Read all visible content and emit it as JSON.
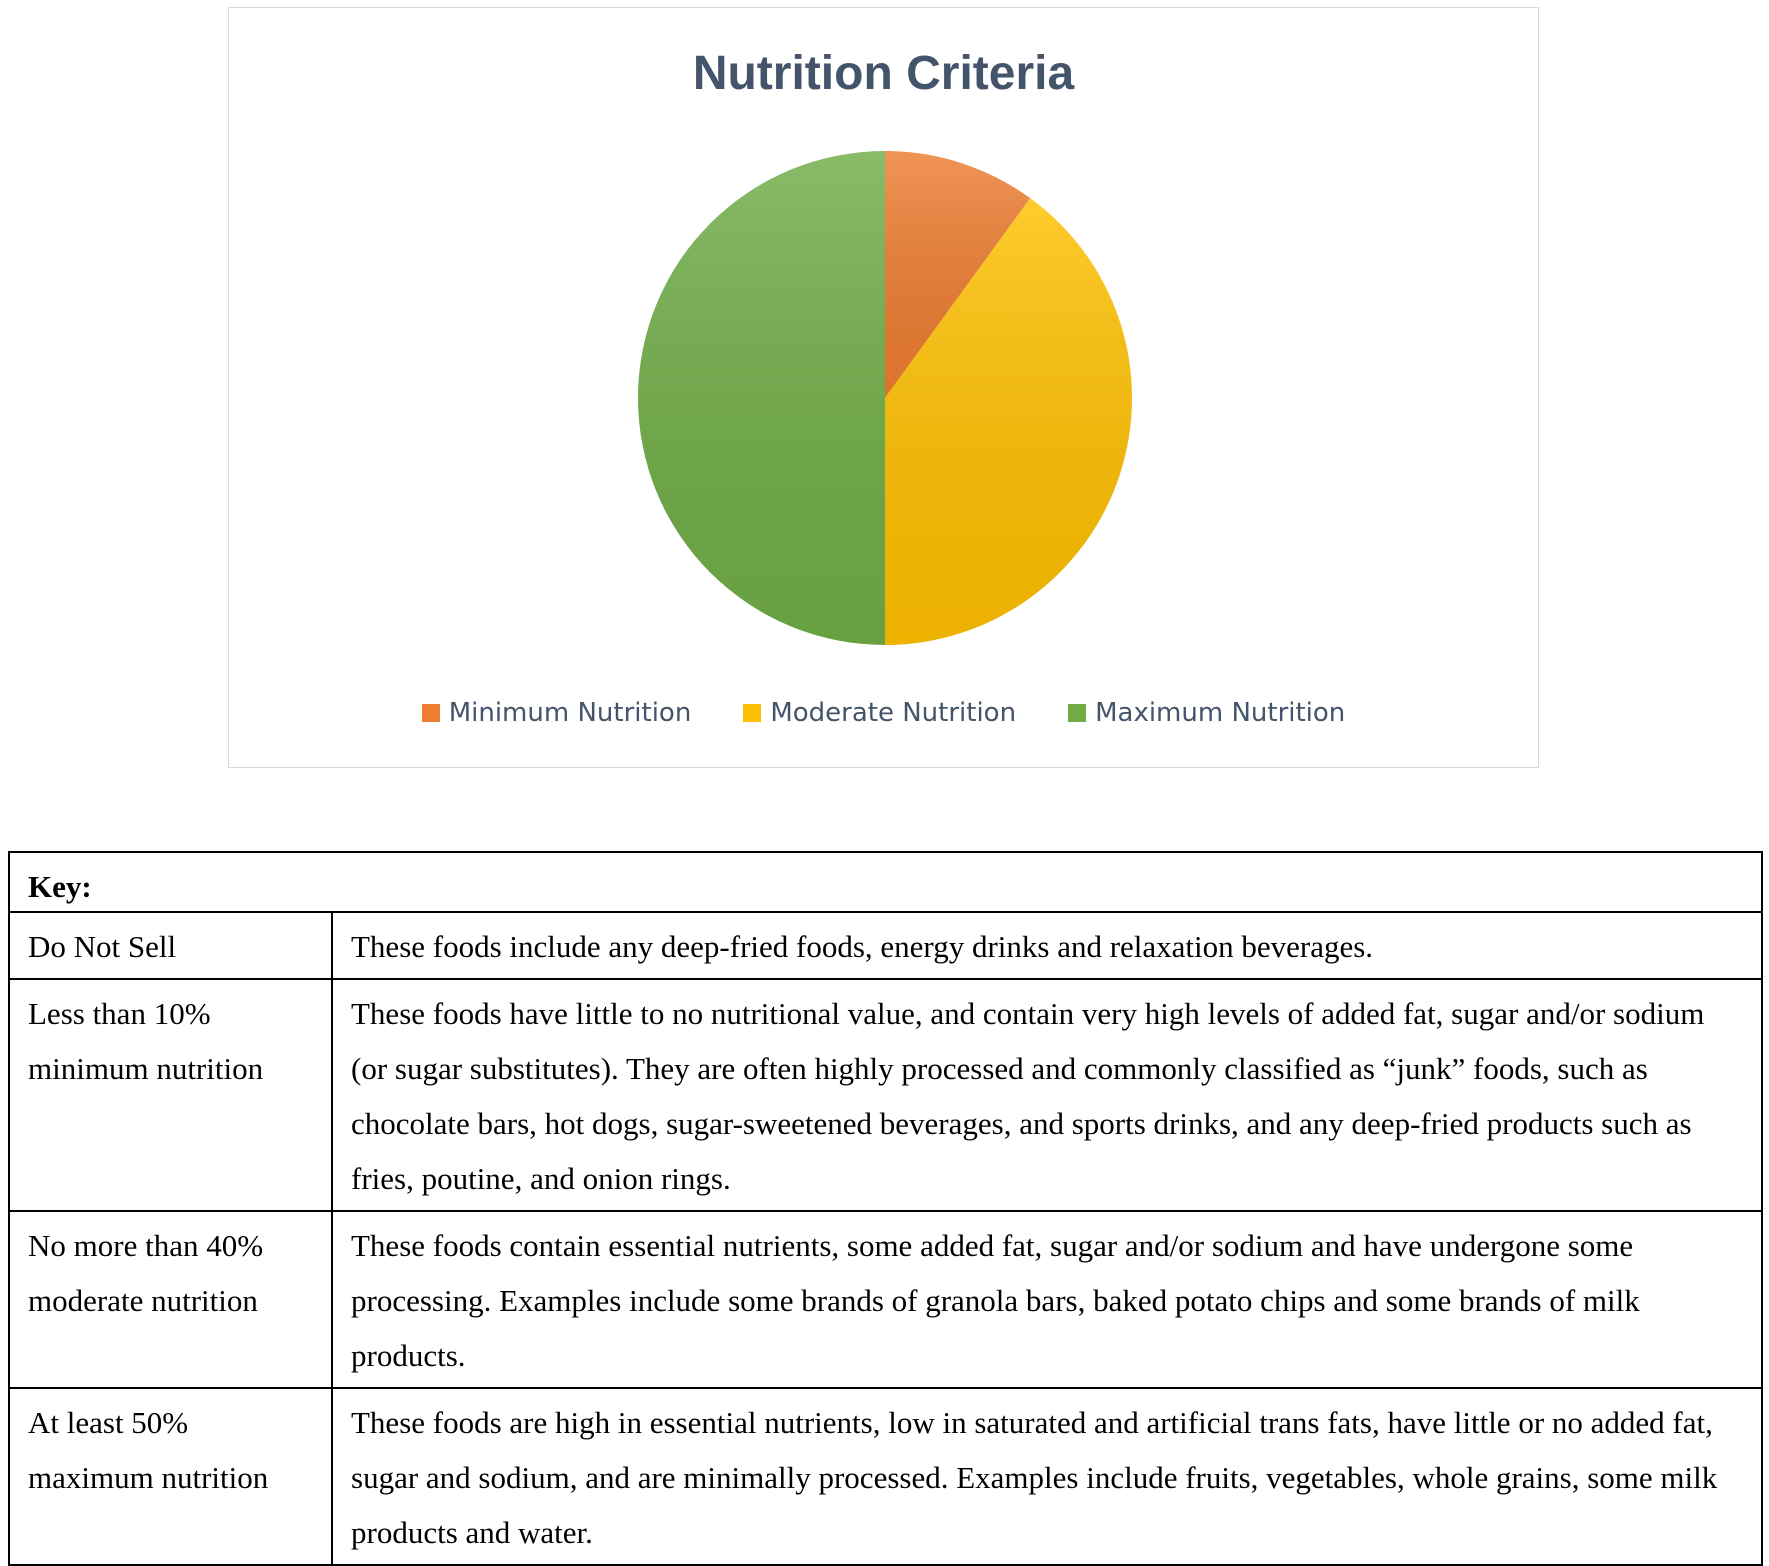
{
  "chart_data": {
    "type": "pie",
    "title": "Nutrition Criteria",
    "slices": [
      {
        "label": "Minimum Nutrition",
        "value": 10,
        "color": "#ED7D31"
      },
      {
        "label": "Moderate Nutrition",
        "value": 40,
        "color": "#FFC000"
      },
      {
        "label": "Maximum Nutrition",
        "value": 50,
        "color": "#70AD47"
      }
    ],
    "legend_position": "bottom"
  },
  "key": {
    "header": "Key:",
    "rows": [
      {
        "category": "Do Not Sell",
        "description": "These foods include any deep-fried foods, energy drinks and relaxation beverages."
      },
      {
        "category": "Less than 10% minimum nutrition",
        "description": "These foods have little to no nutritional value, and contain very high levels of added fat, sugar and/or sodium (or sugar substitutes). They are often highly processed and commonly classified as “junk” foods, such as chocolate bars, hot dogs, sugar-sweetened beverages, and sports drinks, and any deep-fried products such as fries, poutine, and onion rings."
      },
      {
        "category": "No more than 40% moderate nutrition",
        "description": "These foods contain essential nutrients, some added fat, sugar and/or sodium and have undergone some processing. Examples include some brands of granola bars, baked potato chips and some brands of milk products."
      },
      {
        "category": "At least 50% maximum nutrition",
        "description": "These foods are high in essential nutrients, low in saturated and artificial trans fats, have little or no added fat, sugar and sodium, and are minimally processed. Examples include fruits, vegetables, whole grains, some milk products and water."
      }
    ]
  }
}
